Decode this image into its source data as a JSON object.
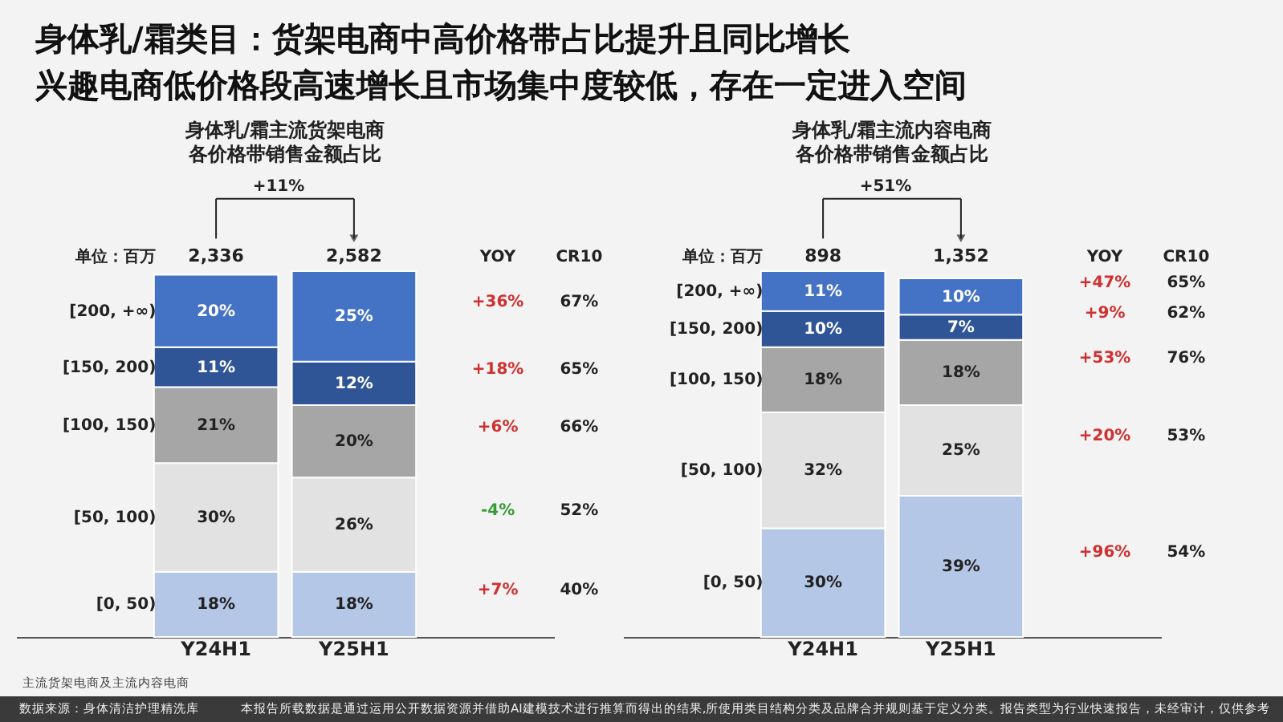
{
  "chart_data": [
    {
      "type": "other",
      "title": "身体乳/霜类目：货架电商中高价格带占比提升且同比增长",
      "subtitle": "兴趣电商低价格段高速增长且市场集中度较低，存在一定进入空间",
      "annotations": [
        "主流货架电商及主流内容电商",
        "数据来源：身体清洁护理精洗库",
        "本报告所载数据是通过运用公开数据资源并借助AI建模技术进行推算而得出的结果,所使用类目结构分类及品牌合并规则基于定义分类。",
        "报告类型为行业快速报告，未经审计，仅供参考"
      ]
    },
    {
      "type": "bar",
      "stacked": true,
      "title": "身体乳/霜主流货架电商",
      "subtitle": "各价格带销售金额占比",
      "categories": [
        "Y24H1",
        "Y25H1"
      ],
      "ylim": [
        0,
        101
      ],
      "tick_labels": "x",
      "series": [
        {
          "name": "[0, 50)",
          "color": "#b4c7e7",
          "values": [
            18,
            18
          ],
          "value_labels": [
            "18%",
            "18%"
          ]
        },
        {
          "name": "[50, 100)",
          "color": "#e2e2e2",
          "values": [
            30,
            26
          ],
          "value_labels": [
            "30%",
            "26%"
          ]
        },
        {
          "name": "[100, 150)",
          "color": "#a6a6a6",
          "values": [
            21,
            20
          ],
          "value_labels": [
            "21%",
            "20%"
          ]
        },
        {
          "name": "[150, 200)",
          "color": "#2f5597",
          "values": [
            11,
            12
          ],
          "value_labels": [
            "11%",
            "12%"
          ]
        },
        {
          "name": "[200, +∞)",
          "color": "#4472c4",
          "values": [
            20,
            25
          ],
          "value_labels": [
            "20%",
            "25%"
          ]
        }
      ],
      "annotations": [
        "单位：百万",
        "2,336",
        "2,582",
        "+11%",
        "YOY",
        "CR10",
        "+36%",
        "67%",
        "+18%",
        "65%",
        "+6%",
        "66%",
        "-4%",
        "52%",
        "+7%",
        "40%"
      ]
    },
    {
      "type": "bar",
      "stacked": true,
      "title": "身体乳/霜主流内容电商",
      "subtitle": "各价格带销售金额占比",
      "categories": [
        "Y24H1",
        "Y25H1"
      ],
      "ylim": [
        0,
        101
      ],
      "tick_labels": "x",
      "series": [
        {
          "name": "[0, 50)",
          "color": "#b4c7e7",
          "values": [
            30,
            39
          ],
          "value_labels": [
            "30%",
            "39%"
          ]
        },
        {
          "name": "[50, 100)",
          "color": "#e2e2e2",
          "values": [
            32,
            25
          ],
          "value_labels": [
            "32%",
            "25%"
          ]
        },
        {
          "name": "[100, 150)",
          "color": "#a6a6a6",
          "values": [
            18,
            18
          ],
          "value_labels": [
            "18%",
            "18%"
          ]
        },
        {
          "name": "[150, 200)",
          "color": "#2f5597",
          "values": [
            10,
            7
          ],
          "value_labels": [
            "10%",
            "7%"
          ]
        },
        {
          "name": "[200, +∞)",
          "color": "#4472c4",
          "values": [
            11,
            10
          ],
          "value_labels": [
            "11%",
            "10%"
          ]
        }
      ],
      "annotations": [
        "单位：百万",
        "898",
        "1,352",
        "+51%",
        "YOY",
        "CR10",
        "+47%",
        "65%",
        "+9%",
        "62%",
        "+53%",
        "76%",
        "+20%",
        "53%",
        "+96%",
        "54%"
      ]
    }
  ]
}
